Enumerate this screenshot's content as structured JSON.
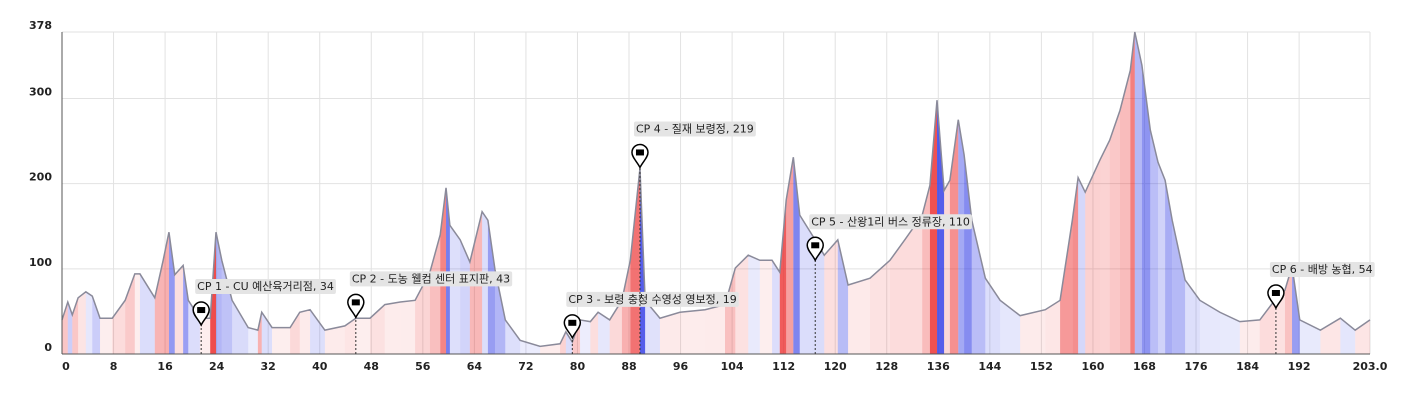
{
  "chart_data": {
    "type": "elevation",
    "x": [
      0,
      0.9,
      1.6,
      2.5,
      3.7,
      4.7,
      5.9,
      7.8,
      9.8,
      11.3,
      12.1,
      14.4,
      15.7,
      16.6,
      17.5,
      18.8,
      19.6,
      21.4,
      23,
      23.9,
      24.8,
      26.4,
      28.9,
      30.4,
      31,
      32.6,
      35.4,
      36.9,
      38.5,
      40.8,
      43.9,
      45.6,
      47.8,
      50.1,
      52.5,
      54.8,
      57.1,
      58.7,
      59.6,
      60.2,
      61.8,
      63.3,
      65.2,
      66.1,
      67.2,
      68.8,
      71.1,
      74.2,
      77.3,
      78.2,
      79.2,
      80.4,
      82,
      83.2,
      85,
      86.9,
      88.2,
      89.7,
      90.5,
      92.8,
      95.9,
      99.8,
      102.9,
      104.5,
      106.5,
      108.3,
      110.2,
      111.4,
      112.4,
      113.5,
      114.5,
      116.4,
      118.3,
      120.4,
      122,
      125.4,
      128.5,
      130.8,
      133.5,
      134.7,
      135.8,
      136.9,
      137.8,
      139.1,
      140,
      141.2,
      143.3,
      145.6,
      148.7,
      152.6,
      154.9,
      156.8,
      157.7,
      158.8,
      161.1,
      162.6,
      164.2,
      165.8,
      166.5,
      167.6,
      168.9,
      170.1,
      171.2,
      172.3,
      174.3,
      176.6,
      179.7,
      182.8,
      185.9,
      188.2,
      189.8,
      190.9,
      192.1,
      195.3,
      198.4,
      200.7,
      203
    ],
    "values": [
      40,
      61,
      46,
      66,
      73,
      68,
      42,
      42,
      63,
      94,
      94,
      66,
      110,
      143,
      93,
      104,
      63,
      42,
      42,
      143,
      110,
      63,
      31,
      28,
      49,
      31,
      31,
      49,
      52,
      28,
      33,
      42,
      42,
      58,
      61,
      63,
      96,
      140,
      195,
      151,
      134,
      108,
      167,
      157,
      99,
      40,
      16,
      9,
      12,
      26,
      14,
      40,
      38,
      49,
      40,
      63,
      110,
      218,
      63,
      42,
      49,
      52,
      58,
      101,
      116,
      110,
      110,
      96,
      181,
      231,
      163,
      140,
      116,
      134,
      81,
      89,
      110,
      134,
      163,
      198,
      298,
      192,
      204,
      275,
      234,
      157,
      89,
      63,
      45,
      52,
      63,
      157,
      207,
      190,
      228,
      251,
      286,
      333,
      378,
      339,
      263,
      225,
      204,
      157,
      87,
      63,
      49,
      38,
      40,
      63,
      75,
      103,
      40,
      28,
      42,
      28,
      40
    ],
    "checkpoints": [
      {
        "label": "CP 1 - CU 예산육거리점, 34",
        "x": 21.6,
        "elevation": 34
      },
      {
        "label": "CP 2 - 도농 웰컴 센터 표지판, 43",
        "x": 45.6,
        "elevation": 43
      },
      {
        "label": "CP 3 - 보령 충청 수영성 영보정, 19",
        "x": 79.2,
        "elevation": 19
      },
      {
        "label": "CP 4 - 질재 보령정, 219",
        "x": 89.7,
        "elevation": 219
      },
      {
        "label": "CP 5 - 산왕1리 버스 정류장, 110",
        "x": 116.9,
        "elevation": 110
      },
      {
        "label": "CP 6 - 배방 농협, 54",
        "x": 188.4,
        "elevation": 54
      }
    ],
    "xlim": [
      0,
      203
    ],
    "xticks": [
      0,
      8,
      16,
      24,
      32,
      40,
      48,
      56,
      64,
      72,
      80,
      88,
      96,
      104,
      112,
      120,
      128,
      136,
      144,
      152,
      160,
      168,
      176,
      184,
      192,
      {
        "value": 203,
        "label": "203.0"
      }
    ],
    "ylim": [
      0,
      378
    ],
    "yticks": [
      0,
      100,
      200,
      300,
      378
    ],
    "grid": true,
    "line_color": "#8a8a9a"
  }
}
